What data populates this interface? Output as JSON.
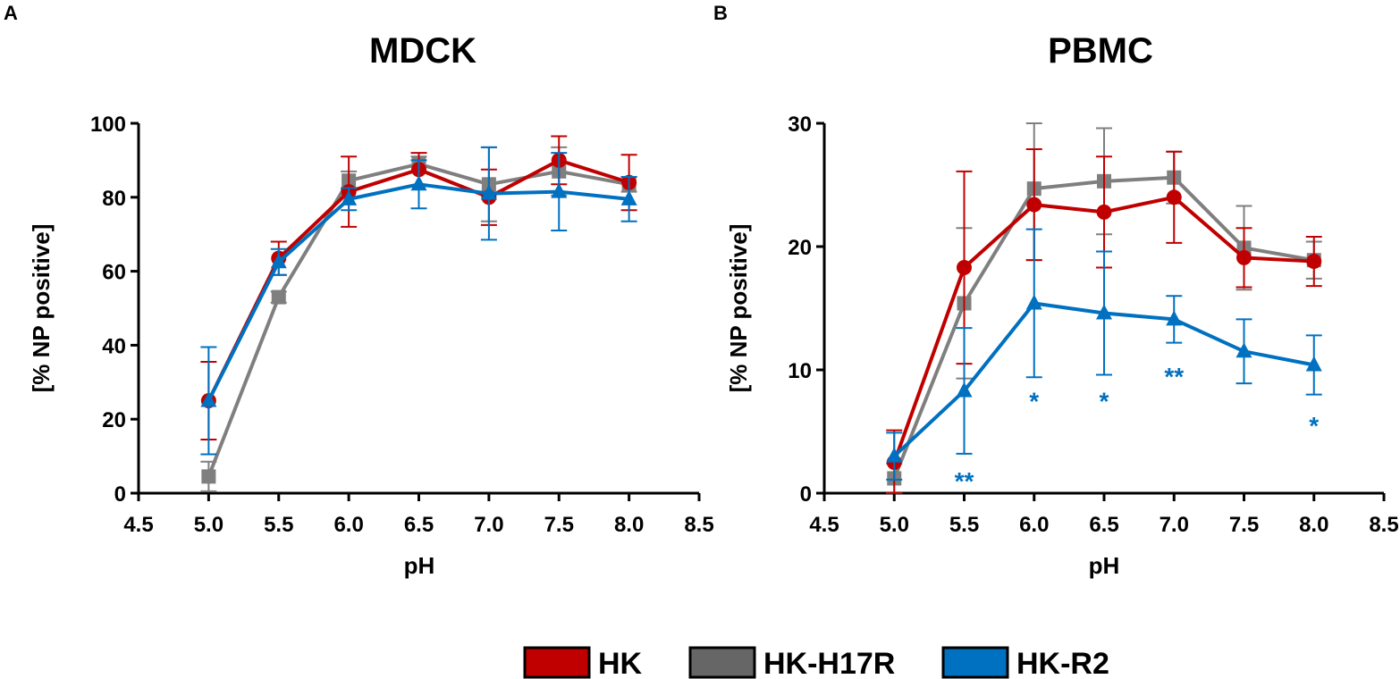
{
  "colors": {
    "HK": "#c00000",
    "HK-H17R": "#7f7f7f",
    "HK-R2": "#0070c0",
    "axis": "#000000"
  },
  "legend": {
    "items": [
      {
        "label": "HK",
        "color": "#c00000",
        "fill": "#c00000"
      },
      {
        "label": "HK-H17R",
        "color": "#7f7f7f",
        "fill": "#666666"
      },
      {
        "label": "HK-R2",
        "color": "#0070c0",
        "fill": "#0070c0"
      }
    ]
  },
  "chart_data": [
    {
      "panel": "A",
      "type": "line",
      "title": "MDCK",
      "xlabel": "pH",
      "ylabel": "[% NP positive]",
      "xlim": [
        4.5,
        8.5
      ],
      "ylim": [
        0,
        100
      ],
      "xticks": [
        "4.5",
        "5.0",
        "5.5",
        "6.0",
        "6.5",
        "7.0",
        "7.5",
        "8.0",
        "8.5"
      ],
      "yticks": [
        "0",
        "20",
        "40",
        "60",
        "80",
        "100"
      ],
      "x": [
        5.0,
        5.5,
        6.0,
        6.5,
        7.0,
        7.5,
        8.0
      ],
      "series": [
        {
          "name": "HK-H17R",
          "marker": "square",
          "values": [
            4.5,
            53,
            84.5,
            89,
            83.5,
            87,
            83.5
          ],
          "errors": [
            4,
            1.5,
            2.5,
            2,
            10,
            6.5,
            2
          ]
        },
        {
          "name": "HK",
          "marker": "circle",
          "values": [
            25,
            63.5,
            81.5,
            87.5,
            80,
            90,
            84
          ],
          "errors": [
            10.5,
            4.5,
            9.5,
            4.5,
            7.5,
            6.5,
            7.5
          ]
        },
        {
          "name": "HK-R2",
          "marker": "triangle",
          "values": [
            25,
            62.5,
            79.5,
            83.5,
            81,
            81.5,
            79.5
          ],
          "errors": [
            14.5,
            3.5,
            3,
            6.5,
            12.5,
            10.5,
            6
          ]
        }
      ],
      "annotations": []
    },
    {
      "panel": "B",
      "type": "line",
      "title": "PBMC",
      "xlabel": "pH",
      "ylabel": "[% NP positive]",
      "xlim": [
        4.5,
        8.5
      ],
      "ylim": [
        0,
        30
      ],
      "xticks": [
        "4.5",
        "5.0",
        "5.5",
        "6.0",
        "6.5",
        "7.0",
        "7.5",
        "8.0",
        "8.5"
      ],
      "yticks": [
        "0",
        "10",
        "20",
        "30"
      ],
      "x": [
        5.0,
        5.5,
        6.0,
        6.5,
        7.0,
        7.5,
        8.0
      ],
      "series": [
        {
          "name": "HK-H17R",
          "marker": "square",
          "values": [
            1.2,
            15.4,
            24.7,
            25.3,
            25.6,
            19.9,
            18.9
          ],
          "errors": [
            1.2,
            6.1,
            5.8,
            4.3,
            2.1,
            3.4,
            1.5
          ]
        },
        {
          "name": "HK",
          "marker": "circle",
          "values": [
            2.5,
            18.3,
            23.4,
            22.8,
            24.0,
            19.1,
            18.8
          ],
          "errors": [
            2.6,
            7.8,
            4.5,
            4.5,
            3.7,
            2.4,
            2.0
          ]
        },
        {
          "name": "HK-R2",
          "marker": "triangle",
          "values": [
            3.0,
            8.3,
            15.4,
            14.6,
            14.1,
            11.5,
            10.4
          ],
          "errors": [
            1.9,
            5.1,
            6.0,
            5.0,
            1.9,
            2.6,
            2.4
          ]
        }
      ],
      "annotations": [
        {
          "x": 5.5,
          "y": 1.0,
          "text": "**",
          "color": "#0070c0"
        },
        {
          "x": 6.0,
          "y": 7.5,
          "text": "*",
          "color": "#0070c0"
        },
        {
          "x": 6.5,
          "y": 7.5,
          "text": "*",
          "color": "#0070c0"
        },
        {
          "x": 7.0,
          "y": 9.5,
          "text": "**",
          "color": "#0070c0"
        },
        {
          "x": 8.0,
          "y": 5.5,
          "text": "*",
          "color": "#0070c0"
        }
      ]
    }
  ]
}
